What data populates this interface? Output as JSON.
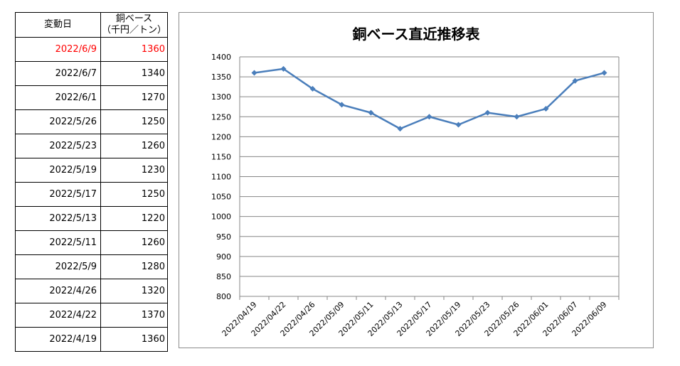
{
  "table": {
    "header_date": "変動日",
    "header_value_line1": "銅ベース",
    "header_value_line2": "（千円／トン）",
    "rows": [
      {
        "date": "2022/6/9",
        "value": "1360"
      },
      {
        "date": "2022/6/7",
        "value": "1340"
      },
      {
        "date": "2022/6/1",
        "value": "1270"
      },
      {
        "date": "2022/5/26",
        "value": "1250"
      },
      {
        "date": "2022/5/23",
        "value": "1260"
      },
      {
        "date": "2022/5/19",
        "value": "1230"
      },
      {
        "date": "2022/5/17",
        "value": "1250"
      },
      {
        "date": "2022/5/13",
        "value": "1220"
      },
      {
        "date": "2022/5/11",
        "value": "1260"
      },
      {
        "date": "2022/5/9",
        "value": "1280"
      },
      {
        "date": "2022/4/26",
        "value": "1320"
      },
      {
        "date": "2022/4/22",
        "value": "1370"
      },
      {
        "date": "2022/4/19",
        "value": "1360"
      }
    ],
    "highlight_color": "#ff0000"
  },
  "chart_data": {
    "type": "line",
    "title": "銅ベース直近推移表",
    "categories": [
      "2022/04/19",
      "2022/04/22",
      "2022/04/26",
      "2022/05/09",
      "2022/05/11",
      "2022/05/13",
      "2022/05/17",
      "2022/05/19",
      "2022/05/23",
      "2022/05/26",
      "2022/06/01",
      "2022/06/07",
      "2022/06/09"
    ],
    "series": [
      {
        "values": [
          1360,
          1370,
          1320,
          1280,
          1260,
          1220,
          1250,
          1230,
          1260,
          1250,
          1270,
          1340,
          1360
        ],
        "color": "#4a7ebb"
      }
    ],
    "yticks": [
      800,
      850,
      900,
      950,
      1000,
      1050,
      1100,
      1150,
      1200,
      1250,
      1300,
      1350,
      1400
    ],
    "ylim": [
      800,
      1400
    ],
    "grid": true,
    "legend": "none"
  }
}
